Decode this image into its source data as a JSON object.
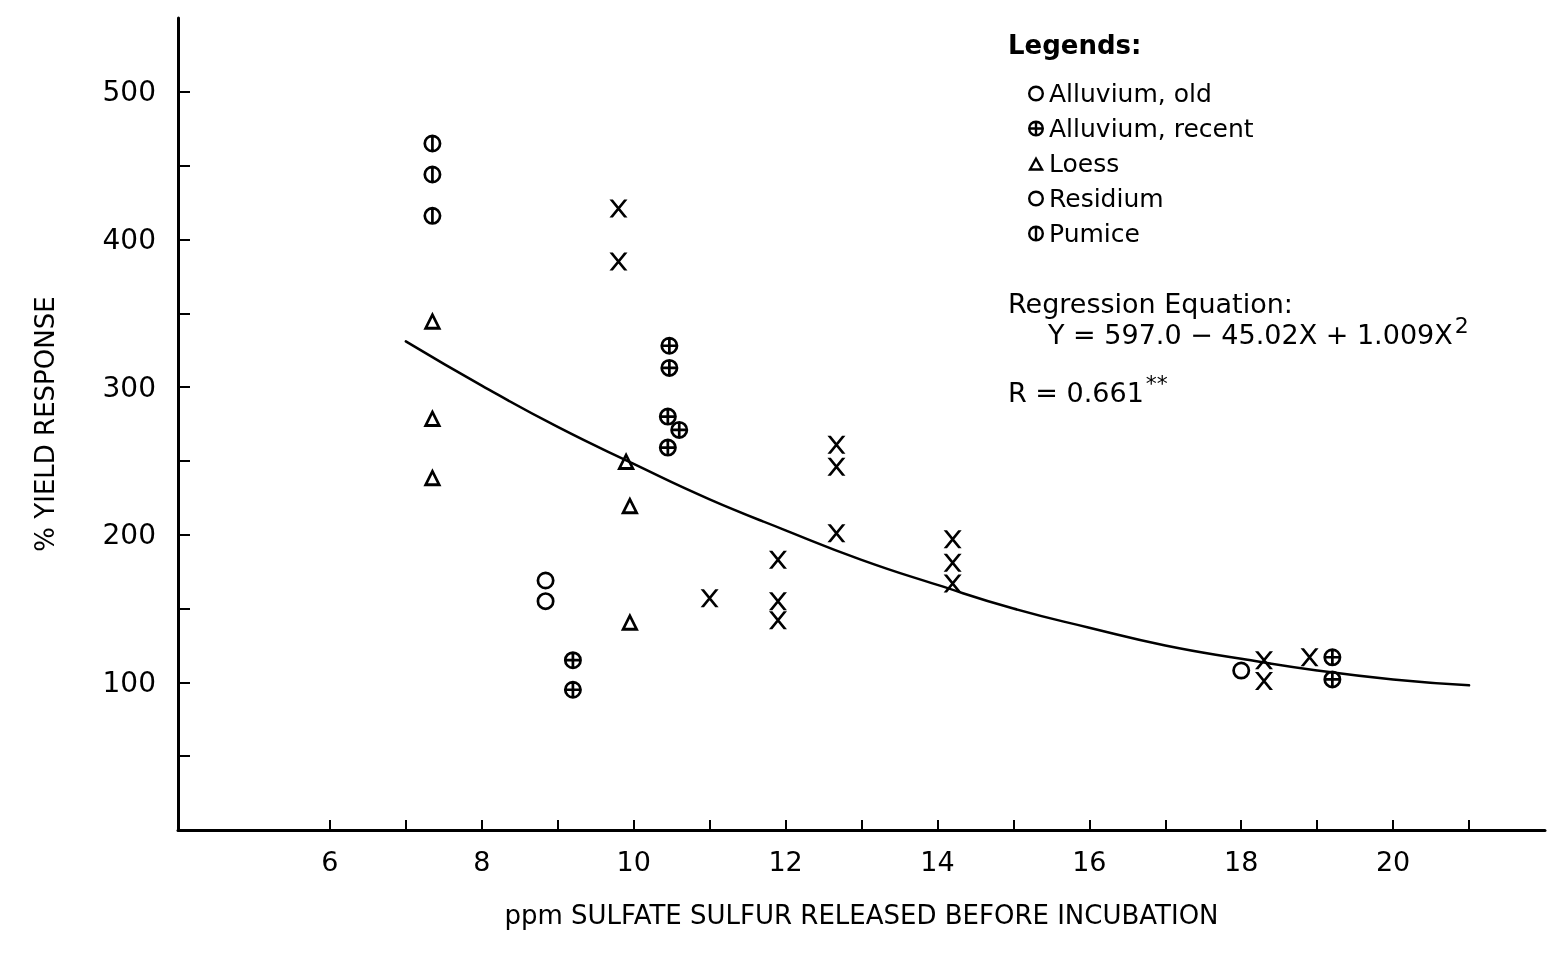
{
  "chart_data": {
    "type": "scatter",
    "xlabel": "ppm SULFATE SULFUR RELEASED BEFORE INCUBATION",
    "ylabel": "% YIELD RESPONSE",
    "legend_title": "Legends:",
    "legend": "top right",
    "grid": false,
    "xlim": [
      4,
      22
    ],
    "ylim": [
      0,
      550
    ],
    "xticks": [
      6,
      {
        "value": 7,
        "label": null
      },
      8,
      {
        "value": 9,
        "label": null
      },
      10,
      {
        "value": 11,
        "label": null
      },
      12,
      {
        "value": 13,
        "label": null
      },
      14,
      {
        "value": 15,
        "label": null
      },
      16,
      {
        "value": 17,
        "label": null
      },
      18,
      {
        "value": 19,
        "label": null
      },
      20,
      {
        "value": 21,
        "label": null
      }
    ],
    "yticks": [
      {
        "value": 50,
        "label": null
      },
      100,
      {
        "value": 150,
        "label": null
      },
      200,
      {
        "value": 250,
        "label": null
      },
      300,
      {
        "value": 350,
        "label": null
      },
      400,
      {
        "value": 450,
        "label": null
      },
      500
    ],
    "series": [
      {
        "name": "Alluvium, old",
        "color": "#000000",
        "marker": "circle",
        "x": [
          18.0
        ],
        "values": [
          108
        ]
      },
      {
        "name": "Alluvium, recent",
        "color": "#000000",
        "marker": "circle-cross",
        "x": [
          9.2,
          9.2,
          10.47,
          10.47,
          10.45,
          10.45,
          10.6,
          19.2,
          19.2
        ],
        "values": [
          115,
          95,
          328,
          313,
          280,
          259,
          271,
          117,
          102
        ]
      },
      {
        "name": "Loess",
        "color": "#000000",
        "marker": "triangle",
        "x": [
          7.35,
          7.35,
          7.35,
          9.9,
          9.95,
          9.95
        ],
        "values": [
          345,
          279,
          239,
          250,
          220,
          141
        ]
      },
      {
        "name": "Residium",
        "color": "#000000",
        "marker": "circle",
        "x": [
          8.84,
          8.84
        ],
        "values": [
          169,
          155
        ]
      },
      {
        "name": "Pumice",
        "color": "#000000",
        "marker": "circle-bar",
        "x": [
          7.35,
          7.35,
          7.35
        ],
        "values": [
          465,
          444,
          416
        ]
      },
      {
        "color": "#000000",
        "marker": "cross",
        "x": [
          9.8,
          9.8,
          11.0,
          11.9,
          11.9,
          11.9,
          12.67,
          12.67,
          12.67,
          14.2,
          14.2,
          14.2,
          18.3,
          18.3,
          18.9
        ],
        "values": [
          421,
          385,
          157,
          183,
          155,
          142,
          261,
          246,
          201,
          197,
          181,
          167,
          115,
          101,
          117
        ]
      },
      {
        "type": "line",
        "color": "#000000",
        "marker": "none",
        "line_style": "solid",
        "x": [
          7,
          8,
          9,
          10,
          11,
          12,
          13,
          14,
          15,
          16,
          17,
          18,
          19,
          20,
          21
        ],
        "values": [
          331,
          301,
          273,
          248,
          224,
          203,
          183,
          166,
          150,
          137,
          125,
          116,
          108,
          102,
          98
        ]
      }
    ],
    "annotations": [
      "Regression Equation:",
      "Y = 597.0 − 45.02X + 1.009X$^{2}$",
      "R = 0.661$^{**}$"
    ]
  }
}
